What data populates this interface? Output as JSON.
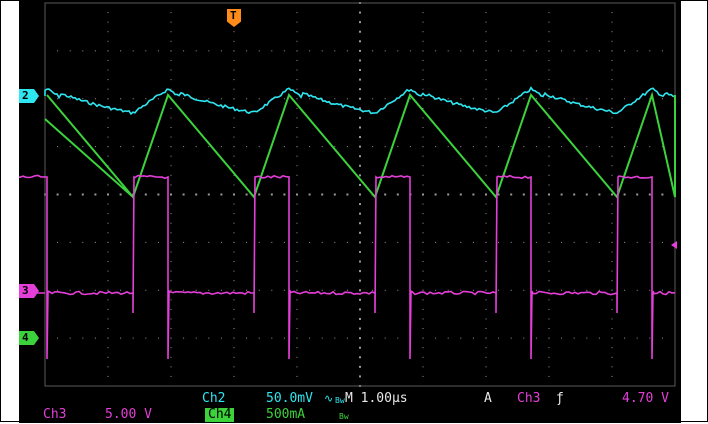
{
  "scope": {
    "channel_markers": [
      {
        "label": "2",
        "color": "#2ee6f0"
      },
      {
        "label": "3",
        "color": "#e43fd8"
      },
      {
        "label": "4",
        "color": "#3cd23c"
      }
    ],
    "trigger_marker": {
      "label": "T",
      "color": "#ff8c1a"
    },
    "status": {
      "ch2_name": "Ch2",
      "ch2_scale": "50.0mV",
      "ch2_coupling": "∿",
      "ch2_bw": "Bw",
      "timebase": "M 1.00µs",
      "trigger_mode": "A",
      "trigger_source": "Ch3",
      "trigger_slope": "ƒ",
      "trigger_level": "4.70 V",
      "ch3_name": "Ch3",
      "ch3_scale": "5.00 V",
      "ch4_name": "Ch4",
      "ch4_scale": "500mA",
      "ch4_bw": "Bw"
    },
    "colors": {
      "ch2": "#2ee6f0",
      "ch3": "#e43fd8",
      "ch4": "#3cd23c",
      "trigger": "#ff8c1a",
      "grid": "#9a9a9a"
    }
  }
}
